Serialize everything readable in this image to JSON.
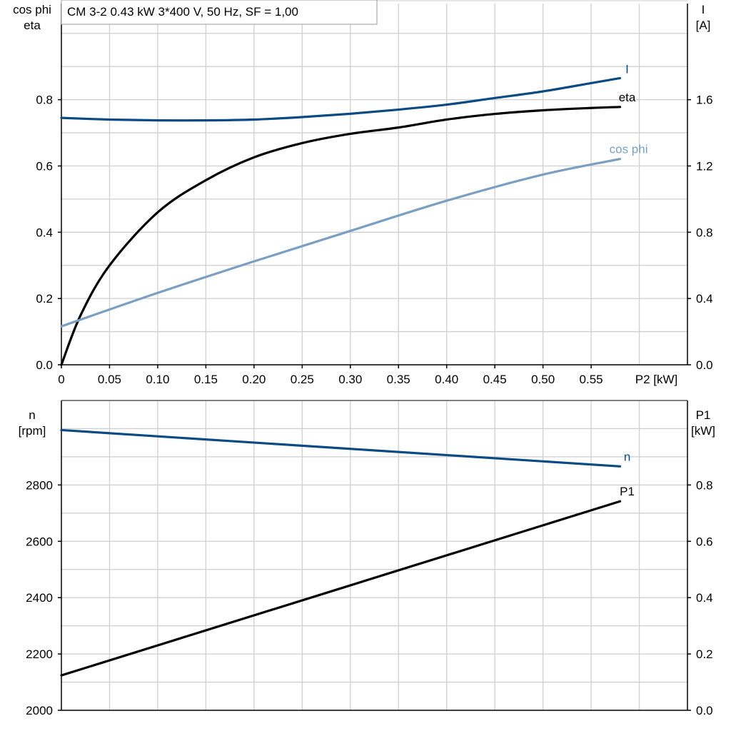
{
  "chart_data": [
    {
      "type": "line",
      "title": "CM 3-2   0.43 kW   3*400 V, 50 Hz, SF = 1,00",
      "xlabel": "P2 [kW]",
      "xlim": [
        0,
        0.65
      ],
      "xticks": [
        "0",
        "0.05",
        "0.10",
        "0.15",
        "0.20",
        "0.25",
        "0.30",
        "0.35",
        "0.40",
        "0.45",
        "0.50",
        "0.55"
      ],
      "ylabel_left": [
        "cos phi",
        "eta"
      ],
      "ylim_left": [
        0,
        1.09
      ],
      "yticks_left": [
        "0.0",
        "0.2",
        "0.4",
        "0.6",
        "0.8"
      ],
      "ylabel_right": [
        "I",
        "[A]"
      ],
      "ylim_right": [
        0,
        2.18
      ],
      "yticks_right": [
        "0.0",
        "0.4",
        "0.8",
        "1.2",
        "1.6"
      ],
      "grid": true,
      "series": [
        {
          "name": "I",
          "axis": "right",
          "color": "#0b4a82",
          "x": [
            0,
            0.05,
            0.1,
            0.15,
            0.2,
            0.25,
            0.3,
            0.35,
            0.4,
            0.45,
            0.5,
            0.55,
            0.58
          ],
          "y": [
            1.49,
            1.48,
            1.475,
            1.475,
            1.48,
            1.495,
            1.515,
            1.54,
            1.57,
            1.61,
            1.65,
            1.7,
            1.73
          ]
        },
        {
          "name": "eta",
          "axis": "left",
          "color": "#000000",
          "x": [
            0,
            0.02,
            0.05,
            0.1,
            0.15,
            0.2,
            0.25,
            0.3,
            0.35,
            0.4,
            0.45,
            0.5,
            0.55,
            0.58
          ],
          "y": [
            0,
            0.15,
            0.3,
            0.46,
            0.557,
            0.626,
            0.669,
            0.697,
            0.716,
            0.74,
            0.757,
            0.768,
            0.775,
            0.778
          ]
        },
        {
          "name": "cos phi",
          "axis": "left",
          "color": "#7a9fc2",
          "x": [
            0,
            0.1,
            0.2,
            0.3,
            0.4,
            0.5,
            0.58
          ],
          "y": [
            0.116,
            0.217,
            0.312,
            0.404,
            0.495,
            0.574,
            0.621
          ]
        }
      ]
    },
    {
      "type": "line",
      "xlim": [
        0,
        0.65
      ],
      "ylabel_left": [
        "n",
        "[rpm]"
      ],
      "ylim_left": [
        2000,
        3100
      ],
      "yticks_left": [
        "2000",
        "2200",
        "2400",
        "2600",
        "2800"
      ],
      "ylabel_right": [
        "P1",
        "[kW]"
      ],
      "ylim_right": [
        0,
        1.1
      ],
      "yticks_right": [
        "0.0",
        "0.2",
        "0.4",
        "0.6",
        "0.8"
      ],
      "grid": true,
      "series": [
        {
          "name": "n",
          "axis": "left",
          "color": "#0b4a82",
          "x": [
            0,
            0.58
          ],
          "y": [
            2995,
            2866
          ]
        },
        {
          "name": "P1",
          "axis": "right",
          "color": "#000000",
          "x": [
            0,
            0.58
          ],
          "y": [
            0.124,
            0.742
          ]
        }
      ]
    }
  ]
}
